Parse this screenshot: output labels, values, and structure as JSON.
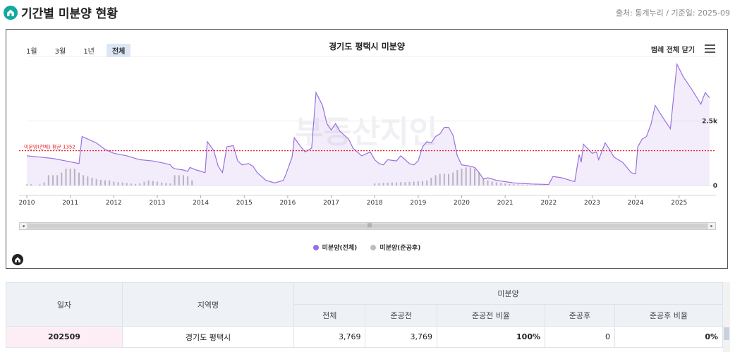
{
  "header": {
    "title": "기간별 미분양 현황",
    "source": "출처: 통계누리 / 기준일: 2025-09"
  },
  "chart": {
    "title": "경기도 평택시 미분양",
    "range_buttons": [
      "1월",
      "3월",
      "1년",
      "전체"
    ],
    "active_range": "전체",
    "legend_close": "범례 전체 닫기",
    "watermark": "부동산지인",
    "average_label": "미분양(전체) 평균 1352",
    "legend": [
      {
        "name": "미분양(전체)",
        "color": "#9b6fe0"
      },
      {
        "name": "미분양(준공후)",
        "color": "#bdbdbd"
      }
    ]
  },
  "chart_data": {
    "type": "line",
    "title": "경기도 평택시 미분양",
    "x_ticks": [
      "2010",
      "2011",
      "2012",
      "2013",
      "2014",
      "2015",
      "2016",
      "2017",
      "2018",
      "2019",
      "2020",
      "2021",
      "2022",
      "2023",
      "2024",
      "2025"
    ],
    "y_ticks": [
      "0",
      "2.5k"
    ],
    "ylim": [
      0,
      5000
    ],
    "average": 1352,
    "series": [
      {
        "name": "미분양(전체)",
        "color": "#9b6fe0",
        "points": [
          [
            2010.0,
            1150
          ],
          [
            2010.3,
            1100
          ],
          [
            2010.6,
            1050
          ],
          [
            2010.9,
            950
          ],
          [
            2011.2,
            850
          ],
          [
            2011.27,
            1900
          ],
          [
            2011.4,
            1800
          ],
          [
            2011.6,
            1650
          ],
          [
            2011.8,
            1400
          ],
          [
            2012.0,
            1250
          ],
          [
            2012.3,
            1150
          ],
          [
            2012.6,
            1000
          ],
          [
            2012.9,
            950
          ],
          [
            2013.2,
            850
          ],
          [
            2013.3,
            800
          ],
          [
            2013.35,
            700
          ],
          [
            2013.4,
            650
          ],
          [
            2013.6,
            600
          ],
          [
            2013.7,
            550
          ],
          [
            2013.75,
            700
          ],
          [
            2013.9,
            600
          ],
          [
            2014.1,
            500
          ],
          [
            2014.15,
            1700
          ],
          [
            2014.3,
            1350
          ],
          [
            2014.4,
            750
          ],
          [
            2014.5,
            500
          ],
          [
            2014.6,
            1500
          ],
          [
            2014.75,
            1550
          ],
          [
            2014.85,
            950
          ],
          [
            2014.95,
            800
          ],
          [
            2015.1,
            850
          ],
          [
            2015.2,
            750
          ],
          [
            2015.3,
            500
          ],
          [
            2015.5,
            200
          ],
          [
            2015.6,
            150
          ],
          [
            2015.7,
            100
          ],
          [
            2015.9,
            200
          ],
          [
            2015.95,
            400
          ],
          [
            2016.1,
            1100
          ],
          [
            2016.15,
            1850
          ],
          [
            2016.3,
            1500
          ],
          [
            2016.4,
            1300
          ],
          [
            2016.55,
            1450
          ],
          [
            2016.65,
            3600
          ],
          [
            2016.8,
            3100
          ],
          [
            2016.9,
            2400
          ],
          [
            2017.0,
            2150
          ],
          [
            2017.1,
            2400
          ],
          [
            2017.2,
            2100
          ],
          [
            2017.4,
            1800
          ],
          [
            2017.5,
            1450
          ],
          [
            2017.7,
            1150
          ],
          [
            2017.9,
            1300
          ],
          [
            2018.0,
            1000
          ],
          [
            2018.1,
            850
          ],
          [
            2018.2,
            800
          ],
          [
            2018.3,
            1000
          ],
          [
            2018.5,
            950
          ],
          [
            2018.6,
            1150
          ],
          [
            2018.8,
            850
          ],
          [
            2018.9,
            800
          ],
          [
            2019.0,
            950
          ],
          [
            2019.1,
            1500
          ],
          [
            2019.2,
            1700
          ],
          [
            2019.3,
            1650
          ],
          [
            2019.4,
            1900
          ],
          [
            2019.5,
            2000
          ],
          [
            2019.6,
            2250
          ],
          [
            2019.7,
            2250
          ],
          [
            2019.8,
            1950
          ],
          [
            2019.9,
            1150
          ],
          [
            2020.0,
            800
          ],
          [
            2020.2,
            750
          ],
          [
            2020.3,
            700
          ],
          [
            2020.4,
            500
          ],
          [
            2020.5,
            250
          ],
          [
            2020.6,
            300
          ],
          [
            2020.7,
            250
          ],
          [
            2020.8,
            200
          ],
          [
            2021.0,
            150
          ],
          [
            2021.2,
            100
          ],
          [
            2021.4,
            80
          ],
          [
            2021.6,
            60
          ],
          [
            2021.8,
            50
          ],
          [
            2022.0,
            40
          ],
          [
            2022.1,
            350
          ],
          [
            2022.3,
            300
          ],
          [
            2022.5,
            200
          ],
          [
            2022.6,
            150
          ],
          [
            2022.7,
            1200
          ],
          [
            2022.75,
            900
          ],
          [
            2022.8,
            1600
          ],
          [
            2023.0,
            1250
          ],
          [
            2023.1,
            1300
          ],
          [
            2023.15,
            1000
          ],
          [
            2023.3,
            1650
          ],
          [
            2023.4,
            1400
          ],
          [
            2023.5,
            1100
          ],
          [
            2023.6,
            1000
          ],
          [
            2023.7,
            900
          ],
          [
            2023.8,
            700
          ],
          [
            2023.9,
            500
          ],
          [
            2024.0,
            450
          ],
          [
            2024.05,
            1500
          ],
          [
            2024.15,
            1800
          ],
          [
            2024.25,
            1900
          ],
          [
            2024.35,
            2350
          ],
          [
            2024.45,
            3100
          ],
          [
            2024.6,
            2700
          ],
          [
            2024.8,
            2200
          ],
          [
            2024.95,
            4700
          ],
          [
            2025.1,
            4200
          ],
          [
            2025.3,
            3700
          ],
          [
            2025.5,
            3150
          ],
          [
            2025.6,
            3600
          ],
          [
            2025.7,
            3400
          ]
        ]
      },
      {
        "name": "미분양(준공후)",
        "color": "#bdbdbd",
        "points": [
          [
            2010.0,
            50
          ],
          [
            2010.1,
            50
          ],
          [
            2010.3,
            40
          ],
          [
            2010.4,
            120
          ],
          [
            2010.5,
            400
          ],
          [
            2010.6,
            400
          ],
          [
            2010.7,
            400
          ],
          [
            2010.8,
            500
          ],
          [
            2010.9,
            650
          ],
          [
            2011.0,
            650
          ],
          [
            2011.1,
            650
          ],
          [
            2011.2,
            500
          ],
          [
            2011.3,
            400
          ],
          [
            2011.4,
            350
          ],
          [
            2011.5,
            300
          ],
          [
            2011.6,
            250
          ],
          [
            2011.7,
            220
          ],
          [
            2011.8,
            200
          ],
          [
            2011.9,
            200
          ],
          [
            2012.0,
            150
          ],
          [
            2012.1,
            130
          ],
          [
            2012.2,
            120
          ],
          [
            2012.3,
            100
          ],
          [
            2012.4,
            80
          ],
          [
            2012.5,
            60
          ],
          [
            2012.6,
            80
          ],
          [
            2012.7,
            150
          ],
          [
            2012.8,
            200
          ],
          [
            2012.9,
            180
          ],
          [
            2013.0,
            150
          ],
          [
            2013.1,
            120
          ],
          [
            2013.2,
            100
          ],
          [
            2013.3,
            80
          ],
          [
            2013.4,
            400
          ],
          [
            2013.5,
            400
          ],
          [
            2013.6,
            400
          ],
          [
            2013.7,
            350
          ],
          [
            2013.8,
            200
          ],
          [
            2018.0,
            80
          ],
          [
            2018.1,
            90
          ],
          [
            2018.2,
            100
          ],
          [
            2018.3,
            110
          ],
          [
            2018.4,
            120
          ],
          [
            2018.5,
            120
          ],
          [
            2018.6,
            130
          ],
          [
            2018.7,
            130
          ],
          [
            2018.8,
            140
          ],
          [
            2018.9,
            150
          ],
          [
            2019.0,
            160
          ],
          [
            2019.1,
            170
          ],
          [
            2019.2,
            200
          ],
          [
            2019.3,
            300
          ],
          [
            2019.4,
            400
          ],
          [
            2019.5,
            450
          ],
          [
            2019.6,
            450
          ],
          [
            2019.7,
            450
          ],
          [
            2019.8,
            500
          ],
          [
            2019.9,
            600
          ],
          [
            2020.0,
            650
          ],
          [
            2020.1,
            700
          ],
          [
            2020.2,
            700
          ],
          [
            2020.3,
            650
          ],
          [
            2020.4,
            500
          ],
          [
            2020.5,
            300
          ],
          [
            2020.6,
            200
          ],
          [
            2020.7,
            150
          ],
          [
            2020.8,
            120
          ],
          [
            2020.9,
            100
          ],
          [
            2021.0,
            80
          ],
          [
            2021.1,
            60
          ],
          [
            2021.2,
            50
          ],
          [
            2021.3,
            40
          ],
          [
            2021.4,
            30
          ],
          [
            2021.5,
            30
          ],
          [
            2021.6,
            20
          ],
          [
            2021.7,
            20
          ],
          [
            2021.8,
            20
          ],
          [
            2021.9,
            20
          ]
        ]
      }
    ]
  },
  "table": {
    "headers": {
      "date": "일자",
      "region": "지역명",
      "group": "미분양",
      "sub": [
        "전체",
        "준공전",
        "준공전 비율",
        "준공후",
        "준공후 비율"
      ]
    },
    "rows": [
      {
        "date": "202509",
        "region": "경기도 평택시",
        "total": "3,769",
        "before": "3,769",
        "before_ratio": "100%",
        "after": "0",
        "after_ratio": "0%"
      }
    ]
  }
}
